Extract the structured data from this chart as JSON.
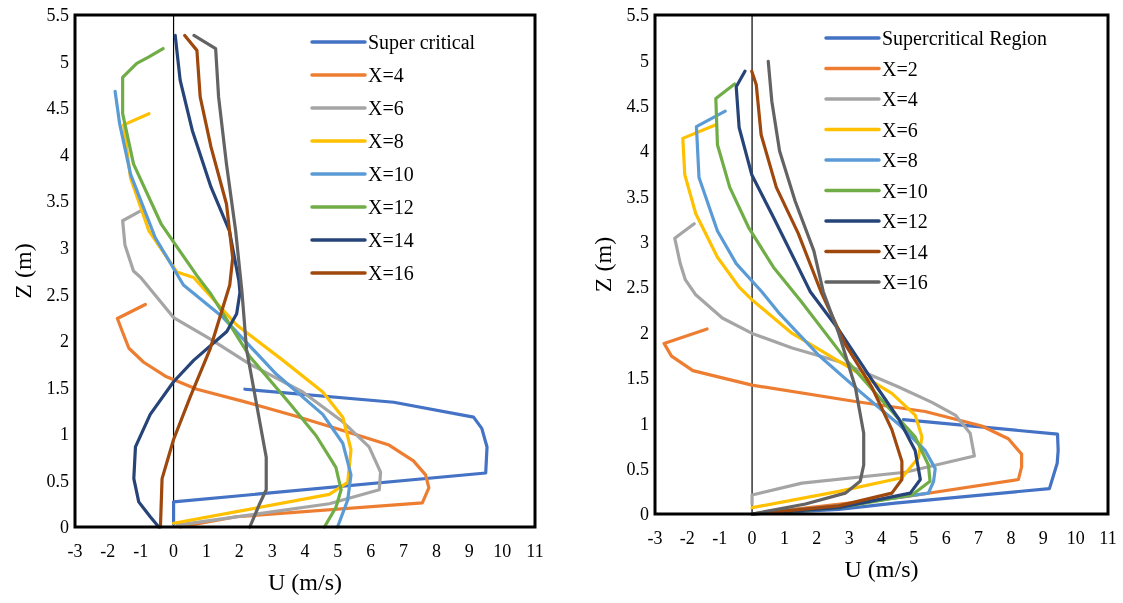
{
  "chart_data": [
    {
      "type": "line",
      "xlabel": "U (m/s)",
      "ylabel": "Z (m)",
      "xlim": [
        -3,
        11
      ],
      "ylim": [
        0,
        5.5
      ],
      "xticks": [
        -3,
        -2,
        -1,
        0,
        1,
        2,
        3,
        4,
        5,
        6,
        7,
        8,
        9,
        10,
        11
      ],
      "yticks": [
        0,
        0.5,
        1,
        1.5,
        2,
        2.5,
        3,
        3.5,
        4,
        4.5,
        5,
        5.5
      ],
      "grid": false,
      "ref_lines": [
        {
          "axis": "x",
          "value": 0,
          "color": "#000000"
        }
      ],
      "legend": "top right",
      "marker": "none",
      "line_style": "solid",
      "series": [
        {
          "name": "Super critical",
          "color": "#4472c4",
          "x": [
            2.17,
            6.7,
            9.13,
            9.38,
            9.54,
            9.5,
            0,
            0
          ],
          "values": [
            1.48,
            1.34,
            1.18,
            1.06,
            0.86,
            0.58,
            0.27,
            0.03
          ]
        },
        {
          "name": "X=4",
          "color": "#ed7d31",
          "x": [
            -0.86,
            -1.71,
            -1.56,
            -1.36,
            -0.91,
            -0.25,
            0.71,
            2.12,
            3.73,
            4.93,
            6.56,
            7.3,
            7.67,
            7.77,
            7.57,
            1.91,
            0.2
          ],
          "values": [
            2.39,
            2.24,
            2.1,
            1.92,
            1.77,
            1.62,
            1.48,
            1.35,
            1.19,
            1.06,
            0.88,
            0.71,
            0.56,
            0.42,
            0.26,
            0.11,
            0
          ]
        },
        {
          "name": "X=6",
          "color": "#a5a5a5",
          "x": [
            -1.03,
            -1.55,
            -1.48,
            -1.22,
            -1,
            0,
            1.11,
            2.32,
            3.93,
            5.15,
            5.95,
            6.3,
            6.26,
            4.74,
            0.1
          ],
          "values": [
            3.39,
            3.29,
            3.03,
            2.75,
            2.68,
            2.25,
            2.02,
            1.75,
            1.45,
            1.13,
            0.86,
            0.59,
            0.4,
            0.25,
            0.02
          ]
        },
        {
          "name": "X=8",
          "color": "#ffc000",
          "x": [
            -0.75,
            -1.52,
            -1.31,
            -0.75,
            0.1,
            0.61,
            1.92,
            3.33,
            4.54,
            5.15,
            5.4,
            5.3,
            4.74,
            0
          ],
          "values": [
            4.44,
            4.32,
            3.75,
            3.18,
            2.74,
            2.68,
            2.17,
            1.79,
            1.45,
            1.18,
            0.83,
            0.48,
            0.35,
            0.04
          ]
        },
        {
          "name": "X=10",
          "color": "#5b9bd5",
          "x": [
            -1.78,
            -1.64,
            -1.31,
            -0.56,
            0.3,
            1.51,
            3.13,
            4.54,
            5.15,
            5.4,
            5.3,
            4.99
          ],
          "values": [
            4.68,
            4.33,
            3.79,
            3.11,
            2.6,
            2.25,
            1.64,
            1.21,
            0.9,
            0.56,
            0.29,
            0
          ]
        },
        {
          "name": "X=12",
          "color": "#70ad47",
          "x": [
            -0.32,
            -0.75,
            -1.12,
            -1.55,
            -1.55,
            -1.22,
            -0.37,
            0.71,
            1.14,
            2.32,
            3.53,
            4.34,
            4.94,
            5.1,
            4.94,
            4.59
          ],
          "values": [
            5.14,
            5.05,
            4.98,
            4.83,
            4.44,
            3.9,
            3.25,
            2.7,
            2.5,
            1.83,
            1.33,
            0.98,
            0.64,
            0.4,
            0.21,
            0
          ]
        },
        {
          "name": "X=14",
          "color": "#264478",
          "x": [
            0.05,
            0.2,
            0.57,
            1.14,
            1.7,
            1.99,
            2.02,
            1.92,
            1.62,
            0.61,
            0,
            -0.71,
            -1.16,
            -1.21,
            -1.06,
            -0.71,
            -0.45
          ],
          "values": [
            5.28,
            4.8,
            4.26,
            3.65,
            3.18,
            2.64,
            2.52,
            2.29,
            2.1,
            1.79,
            1.56,
            1.21,
            0.86,
            0.52,
            0.27,
            0.11,
            0
          ]
        },
        {
          "name": "X=16",
          "color": "#9e480e",
          "x": [
            0.34,
            0.71,
            0.81,
            1.14,
            1.61,
            1.8,
            1.71,
            1.11,
            0.51,
            0,
            -0.35,
            -0.4
          ],
          "values": [
            5.28,
            5.12,
            4.62,
            4.08,
            3.47,
            2.89,
            2.6,
            1.91,
            1.4,
            0.94,
            0.52,
            0
          ]
        },
        {
          "color": "#636363",
          "x": [
            0.62,
            1.28,
            1.37,
            1.61,
            1.89,
            2.08,
            2.22,
            2.52,
            2.82,
            2.82,
            2.62,
            2.32
          ],
          "values": [
            5.28,
            5.14,
            4.62,
            3.9,
            3.18,
            2.53,
            1.91,
            1.33,
            0.75,
            0.4,
            0.25,
            0
          ]
        }
      ]
    },
    {
      "type": "line",
      "xlabel": "U (m/s)",
      "ylabel": "Z (m)",
      "xlim": [
        -3,
        11
      ],
      "ylim": [
        0,
        5.5
      ],
      "xticks": [
        -3,
        -2,
        -1,
        0,
        1,
        2,
        3,
        4,
        5,
        6,
        7,
        8,
        9,
        10,
        11
      ],
      "yticks": [
        0,
        0.5,
        1,
        1.5,
        2,
        2.5,
        3,
        3.5,
        4,
        4.5,
        5,
        5.5
      ],
      "grid": false,
      "ref_lines": [
        {
          "axis": "x",
          "value": 0,
          "color": "#000000"
        }
      ],
      "legend": "top right",
      "marker": "none",
      "line_style": "solid",
      "series": [
        {
          "name": "Supercritical Region",
          "color": "#4472c4",
          "x": [
            4.68,
            9.44,
            9.46,
            9.43,
            9.19,
            4.42,
            2.68,
            0
          ],
          "values": [
            1.04,
            0.88,
            0.7,
            0.56,
            0.28,
            0.12,
            0.05,
            0
          ]
        },
        {
          "name": "X=2",
          "color": "#ed7d31",
          "x": [
            -1.39,
            -2.72,
            -2.49,
            -1.83,
            -0.92,
            0,
            3.19,
            5.35,
            7.1,
            7.92,
            8.33,
            8.33,
            8.23,
            4.73,
            0
          ],
          "values": [
            2.04,
            1.88,
            1.74,
            1.58,
            1.5,
            1.42,
            1.24,
            1.13,
            0.97,
            0.83,
            0.66,
            0.52,
            0.38,
            0.19,
            0
          ]
        },
        {
          "name": "X=4",
          "color": "#a5a5a5",
          "x": [
            -1.79,
            -2.39,
            -2.22,
            -2.06,
            -1.75,
            -0.92,
            0,
            1.24,
            2.68,
            4.53,
            5.56,
            6.28,
            6.74,
            6.87,
            4.73,
            1.54,
            0,
            0
          ],
          "values": [
            3.2,
            3.04,
            2.76,
            2.58,
            2.42,
            2.16,
            1.99,
            1.83,
            1.68,
            1.4,
            1.23,
            1.09,
            0.89,
            0.64,
            0.46,
            0.34,
            0.21,
            0.11
          ]
        },
        {
          "name": "X=6",
          "color": "#ffc000",
          "x": [
            -1.12,
            -2.14,
            -2.08,
            -1.74,
            -1.07,
            -0.4,
            0,
            1.24,
            2.88,
            4.32,
            5.04,
            5.25,
            5.14,
            4.63,
            2.68,
            0
          ],
          "values": [
            4.29,
            4.14,
            3.74,
            3.31,
            2.83,
            2.5,
            2.36,
            1.99,
            1.64,
            1.33,
            1.09,
            0.85,
            0.62,
            0.4,
            0.25,
            0.07
          ]
        },
        {
          "name": "X=8",
          "color": "#5b9bd5",
          "x": [
            -0.83,
            -1.72,
            -1.64,
            -1.07,
            -0.49,
            0.3,
            0.82,
            2.06,
            3.4,
            4.53,
            5.35,
            5.66,
            5.61,
            5.45,
            2.68,
            0
          ],
          "values": [
            4.44,
            4.27,
            3.71,
            3.12,
            2.76,
            2.45,
            2.22,
            1.75,
            1.33,
            0.99,
            0.7,
            0.5,
            0.36,
            0.23,
            0.09,
            0
          ]
        },
        {
          "name": "X=10",
          "color": "#70ad47",
          "x": [
            -0.54,
            -1.12,
            -1.07,
            -0.69,
            -0.11,
            0.66,
            1.5,
            2.88,
            4.12,
            5.04,
            5.45,
            5.5,
            4.94,
            2.68,
            0
          ],
          "values": [
            4.74,
            4.58,
            4.07,
            3.6,
            3.16,
            2.72,
            2.35,
            1.71,
            1.21,
            0.85,
            0.54,
            0.36,
            0.21,
            0.07,
            0
          ]
        },
        {
          "name": "X=12",
          "color": "#264478",
          "x": [
            -0.22,
            -0.49,
            -0.4,
            -0.01,
            0.66,
            1.33,
            1.8,
            2.68,
            3.7,
            4.53,
            5.04,
            5.2,
            4.89,
            2.68,
            0
          ],
          "values": [
            4.88,
            4.71,
            4.26,
            3.74,
            3.27,
            2.79,
            2.45,
            2.03,
            1.48,
            1.05,
            0.7,
            0.38,
            0.23,
            0.07,
            0
          ]
        },
        {
          "name": "X=14",
          "color": "#9e480e",
          "x": [
            -0.01,
            0.13,
            0.28,
            0.75,
            1.43,
            2.13,
            2.88,
            3.7,
            4.32,
            4.63,
            4.63,
            4.32,
            2.68,
            0
          ],
          "values": [
            4.88,
            4.73,
            4.18,
            3.6,
            3.09,
            2.45,
            1.87,
            1.4,
            0.93,
            0.58,
            0.38,
            0.23,
            0.09,
            0
          ]
        },
        {
          "name": "X=16",
          "color": "#636363",
          "x": [
            0.5,
            0.61,
            0.85,
            1.33,
            1.91,
            2.2,
            2.68,
            3.19,
            3.45,
            3.45,
            3.34,
            2.88,
            1.65,
            0
          ],
          "values": [
            4.99,
            4.55,
            4,
            3.45,
            2.9,
            2.45,
            1.99,
            1.4,
            0.89,
            0.54,
            0.36,
            0.23,
            0.11,
            0
          ]
        }
      ]
    }
  ]
}
